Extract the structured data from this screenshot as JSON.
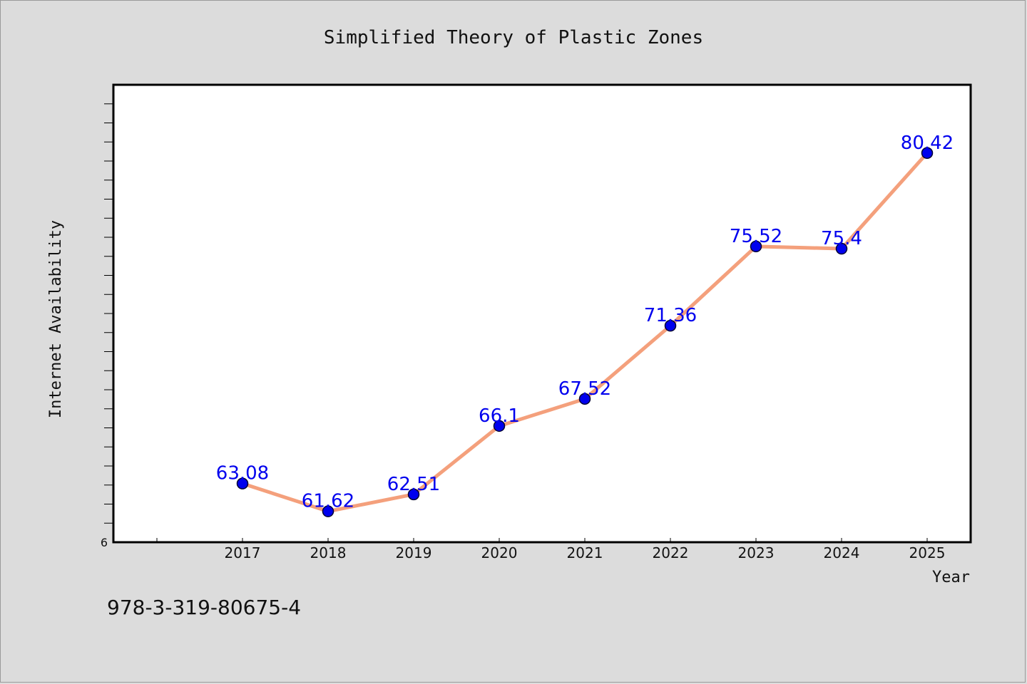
{
  "chart_data": {
    "type": "line",
    "title": "Simplified Theory of Plastic Zones",
    "xlabel": "Year",
    "ylabel": "Internet Availability",
    "x": [
      "2017",
      "2018",
      "2019",
      "2020",
      "2021",
      "2022",
      "2023",
      "2024",
      "2025"
    ],
    "series": [
      {
        "values": [
          63.08,
          61.62,
          62.51,
          66.1,
          67.52,
          71.36,
          75.52,
          75.4,
          80.42
        ],
        "data_labels": [
          "63.08",
          "61.62",
          "62.51",
          "66.1",
          "67.52",
          "71.36",
          "75.52",
          "75.4",
          "80.42"
        ]
      }
    ],
    "ylim": [
      60,
      84
    ],
    "y_tick_labels": [
      "6"
    ],
    "grid": false,
    "legend": "none",
    "colors": {
      "line": "#f4a07c",
      "marker": "#0000ee",
      "marker_edge": "#000033",
      "data_label": "#0000ee",
      "plot_background": "#ffffff",
      "figure_background": "#dcdcdc"
    },
    "footnote": "978-3-319-80675-4"
  }
}
